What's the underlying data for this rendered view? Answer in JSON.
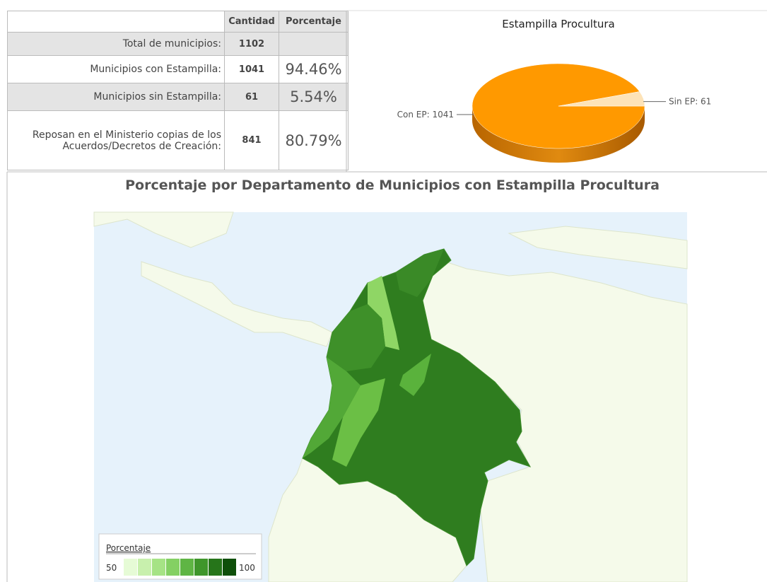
{
  "table": {
    "header": [
      "Cantidad",
      "Porcentaje"
    ],
    "rows": [
      {
        "label": "Total de municipios:",
        "cantidad": "1102"
      },
      {
        "label": "Municipios con Estampilla:",
        "cantidad": "1041",
        "porcentaje": "94.46%"
      },
      {
        "label": "Municipios sin Estampilla:",
        "cantidad": "61",
        "porcentaje": "5.54%"
      },
      {
        "label": "Reposan en el Ministerio copias de los Acuerdos/Decretos de Creación:",
        "cantidad": "841",
        "porcentaje": "80.79%"
      }
    ]
  },
  "chart_data": {
    "type": "pie",
    "title": "Estampilla Procultura",
    "categories": [
      "Con EP",
      "Sin EP"
    ],
    "values": [
      1041,
      61
    ],
    "value_labels": [
      "Con EP: 1041",
      "Sin EP: 61"
    ],
    "colors": [
      "#ff9900",
      "#fde3b8"
    ]
  },
  "map": {
    "title": "Porcentaje por Departamento de Municipios con Estampilla Procultura",
    "legend": {
      "title": "Porcentaje",
      "min": "50",
      "max": "100"
    }
  }
}
